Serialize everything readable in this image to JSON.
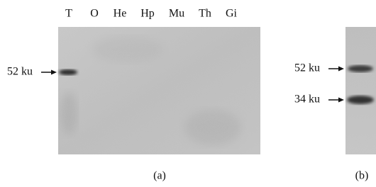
{
  "panel_a": {
    "lanes": [
      "T",
      "O",
      "He",
      "Hp",
      "Mu",
      "Th",
      "Gi"
    ],
    "marker": "52 ku",
    "caption": "(a)"
  },
  "panel_b": {
    "markers": [
      "52 ku",
      "34 ku"
    ],
    "caption": "(b)"
  }
}
